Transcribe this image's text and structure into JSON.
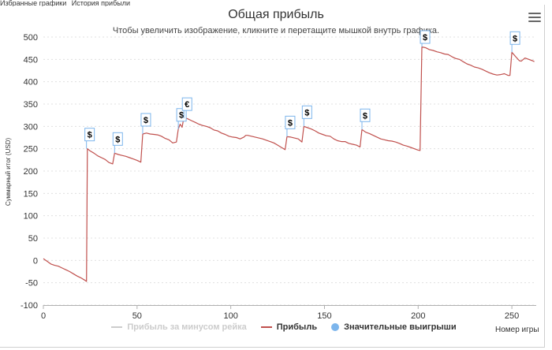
{
  "top_tabs": [
    "Избранные графики",
    "История прибыли"
  ],
  "chart_data": {
    "type": "line",
    "title": "Общая прибыль",
    "subtitle": "Чтобы увеличить изображение, кликните и перетащите мышкой внутрь графика.",
    "xlabel": "Номер игры",
    "ylabel": "Суммарный итог (USD)",
    "xlim": [
      0,
      263
    ],
    "ylim": [
      -100,
      500
    ],
    "x_ticks": [
      0,
      50,
      100,
      150,
      200,
      250
    ],
    "y_ticks": [
      -100,
      -50,
      0,
      50,
      100,
      150,
      200,
      250,
      300,
      350,
      400,
      450,
      500
    ],
    "grid": true,
    "legend_position": "bottom",
    "series": [
      {
        "name": "Прибыль",
        "color": "#c0504d",
        "points": [
          [
            0,
            4
          ],
          [
            2,
            -2
          ],
          [
            4,
            -8
          ],
          [
            6,
            -11
          ],
          [
            8,
            -13
          ],
          [
            10,
            -17
          ],
          [
            12,
            -21
          ],
          [
            14,
            -25
          ],
          [
            16,
            -30
          ],
          [
            18,
            -35
          ],
          [
            20,
            -39
          ],
          [
            22,
            -44
          ],
          [
            23,
            -47
          ],
          [
            23.5,
            250
          ],
          [
            25,
            245
          ],
          [
            27,
            240
          ],
          [
            29,
            234
          ],
          [
            31,
            230
          ],
          [
            33,
            226
          ],
          [
            35,
            219
          ],
          [
            37,
            216
          ],
          [
            38,
            240
          ],
          [
            40,
            237
          ],
          [
            42,
            235
          ],
          [
            44,
            233
          ],
          [
            46,
            230
          ],
          [
            48,
            227
          ],
          [
            50,
            224
          ],
          [
            52,
            220
          ],
          [
            53,
            283
          ],
          [
            55,
            285
          ],
          [
            57,
            283
          ],
          [
            59,
            282
          ],
          [
            61,
            281
          ],
          [
            63,
            278
          ],
          [
            65,
            273
          ],
          [
            67,
            270
          ],
          [
            69,
            263
          ],
          [
            71,
            265
          ],
          [
            72,
            294
          ],
          [
            73,
            305
          ],
          [
            74,
            298
          ],
          [
            75,
            320
          ],
          [
            77,
            317
          ],
          [
            79,
            313
          ],
          [
            81,
            309
          ],
          [
            83,
            305
          ],
          [
            85,
            302
          ],
          [
            87,
            300
          ],
          [
            89,
            297
          ],
          [
            91,
            292
          ],
          [
            93,
            290
          ],
          [
            95,
            285
          ],
          [
            97,
            282
          ],
          [
            99,
            278
          ],
          [
            101,
            276
          ],
          [
            103,
            275
          ],
          [
            105,
            272
          ],
          [
            107,
            276
          ],
          [
            108,
            280
          ],
          [
            109,
            280
          ],
          [
            111,
            278
          ],
          [
            113,
            276
          ],
          [
            115,
            274
          ],
          [
            117,
            272
          ],
          [
            119,
            269
          ],
          [
            121,
            266
          ],
          [
            123,
            263
          ],
          [
            125,
            258
          ],
          [
            127,
            253
          ],
          [
            129,
            248
          ],
          [
            130,
            277
          ],
          [
            132,
            276
          ],
          [
            134,
            274
          ],
          [
            136,
            272
          ],
          [
            138,
            265
          ],
          [
            139,
            300
          ],
          [
            141,
            297
          ],
          [
            143,
            294
          ],
          [
            145,
            290
          ],
          [
            147,
            285
          ],
          [
            149,
            282
          ],
          [
            151,
            279
          ],
          [
            153,
            278
          ],
          [
            155,
            272
          ],
          [
            157,
            268
          ],
          [
            159,
            266
          ],
          [
            161,
            266
          ],
          [
            163,
            262
          ],
          [
            165,
            260
          ],
          [
            167,
            258
          ],
          [
            169,
            254
          ],
          [
            170,
            293
          ],
          [
            172,
            287
          ],
          [
            174,
            284
          ],
          [
            176,
            280
          ],
          [
            178,
            276
          ],
          [
            180,
            272
          ],
          [
            182,
            270
          ],
          [
            184,
            268
          ],
          [
            186,
            267
          ],
          [
            188,
            265
          ],
          [
            190,
            262
          ],
          [
            192,
            258
          ],
          [
            194,
            256
          ],
          [
            196,
            253
          ],
          [
            198,
            250
          ],
          [
            200,
            247
          ],
          [
            201,
            246
          ],
          [
            202,
            478
          ],
          [
            204,
            476
          ],
          [
            206,
            472
          ],
          [
            208,
            470
          ],
          [
            210,
            467
          ],
          [
            212,
            465
          ],
          [
            214,
            462
          ],
          [
            216,
            461
          ],
          [
            218,
            456
          ],
          [
            220,
            452
          ],
          [
            222,
            450
          ],
          [
            224,
            445
          ],
          [
            226,
            440
          ],
          [
            228,
            437
          ],
          [
            230,
            433
          ],
          [
            232,
            431
          ],
          [
            234,
            428
          ],
          [
            236,
            424
          ],
          [
            238,
            420
          ],
          [
            240,
            417
          ],
          [
            242,
            415
          ],
          [
            244,
            416
          ],
          [
            246,
            418
          ],
          [
            248,
            414
          ],
          [
            249,
            414
          ],
          [
            250,
            466
          ],
          [
            252,
            456
          ],
          [
            254,
            447
          ],
          [
            255,
            446
          ],
          [
            257,
            453
          ],
          [
            259,
            450
          ],
          [
            261,
            447
          ],
          [
            262,
            445
          ]
        ]
      }
    ],
    "legend": [
      {
        "name": "Прибыль за минусом рейка",
        "color": "#cccccc",
        "hidden": true
      },
      {
        "name": "Прибыль",
        "color": "#c0504d"
      },
      {
        "name": "Значительные выигрыши",
        "color": "#7cb5ec"
      }
    ],
    "flags": [
      {
        "x": 23,
        "y": 250,
        "text": "$"
      },
      {
        "x": 38,
        "y": 240,
        "text": "$"
      },
      {
        "x": 53,
        "y": 283,
        "text": "$"
      },
      {
        "x": 72,
        "y": 294,
        "text": "$"
      },
      {
        "x": 75,
        "y": 318,
        "text": "€"
      },
      {
        "x": 130,
        "y": 277,
        "text": "$"
      },
      {
        "x": 139,
        "y": 300,
        "text": "$"
      },
      {
        "x": 170,
        "y": 293,
        "text": "$"
      },
      {
        "x": 202,
        "y": 478,
        "text": "$"
      },
      {
        "x": 250,
        "y": 466,
        "text": "$"
      }
    ]
  }
}
